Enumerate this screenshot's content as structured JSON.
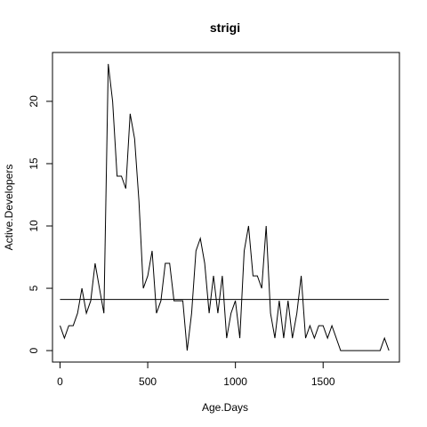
{
  "chart_data": {
    "type": "line",
    "title": "strigi",
    "xlabel": "Age.Days",
    "ylabel": "Active.Developers",
    "xlim": [
      -43,
      1935
    ],
    "ylim": [
      -0.92,
      23.92
    ],
    "x_ticks": [
      0,
      500,
      1000,
      1500
    ],
    "y_ticks": [
      0,
      5,
      10,
      15,
      20
    ],
    "grid": false,
    "legend": "none",
    "line_color": "#000000",
    "reference_line": {
      "y": 4.1,
      "x_range": [
        0,
        1875
      ]
    },
    "series": [
      {
        "x": [
          0,
          25,
          50,
          75,
          100,
          125,
          150,
          175,
          200,
          225,
          250,
          275,
          300,
          325,
          350,
          375,
          400,
          425,
          450,
          475,
          500,
          525,
          550,
          575,
          600,
          625,
          650,
          675,
          700,
          725,
          750,
          775,
          800,
          825,
          850,
          875,
          900,
          925,
          950,
          975,
          1000,
          1025,
          1050,
          1075,
          1100,
          1125,
          1150,
          1175,
          1200,
          1225,
          1250,
          1275,
          1300,
          1325,
          1350,
          1375,
          1400,
          1425,
          1450,
          1475,
          1500,
          1525,
          1550,
          1575,
          1600,
          1625,
          1650,
          1675,
          1700,
          1725,
          1750,
          1775,
          1800,
          1825,
          1850,
          1875
        ],
        "values": [
          2,
          1,
          2,
          2,
          3,
          5,
          3,
          4,
          7,
          5,
          3,
          23,
          20,
          14,
          14,
          13,
          19,
          17,
          12,
          5,
          6,
          8,
          3,
          4,
          7,
          7,
          4,
          4,
          4,
          0,
          3,
          8,
          9,
          7,
          3,
          6,
          3,
          6,
          1,
          3,
          4,
          1,
          8,
          10,
          6,
          6,
          5,
          10,
          3,
          1,
          4,
          1,
          4,
          1,
          3,
          6,
          1,
          2,
          1,
          2,
          2,
          1,
          2,
          1,
          0,
          0,
          0,
          0,
          0,
          0,
          0,
          0,
          0,
          0,
          1,
          0
        ]
      }
    ]
  }
}
